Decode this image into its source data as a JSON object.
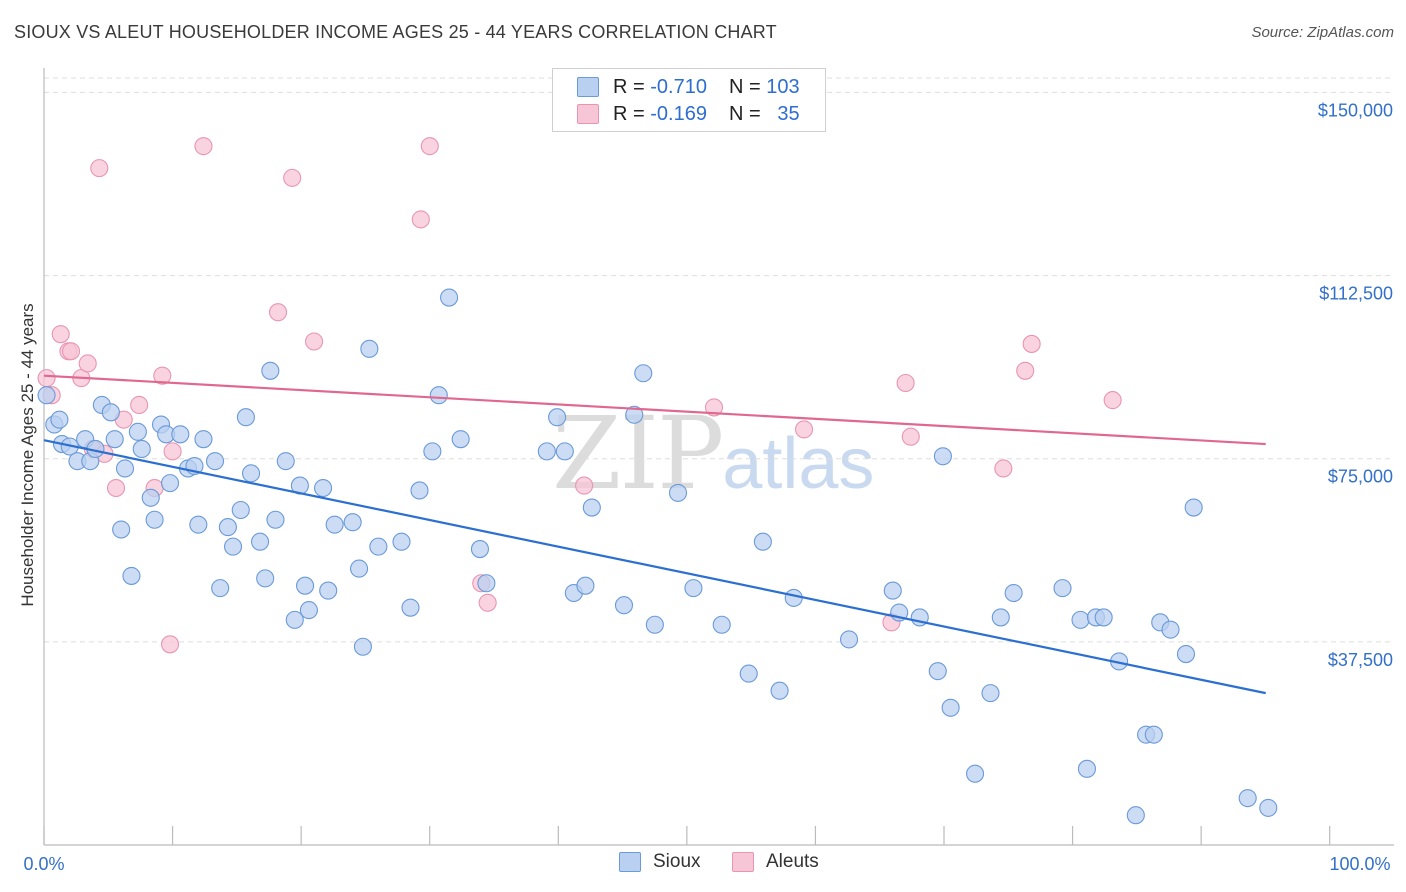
{
  "header": {
    "title": "SIOUX VS ALEUT HOUSEHOLDER INCOME AGES 25 - 44 YEARS CORRELATION CHART",
    "source": "Source: ZipAtlas.com"
  },
  "watermark": {
    "zip": "ZIP",
    "atlas": "atlas"
  },
  "legend": {
    "rows": [
      {
        "r_label": "R =",
        "r_value": "-0.710",
        "n_label": "N =",
        "n_value": "103"
      },
      {
        "r_label": "R =",
        "r_value": "-0.169",
        "n_label": "N =",
        "n_value": "35"
      }
    ]
  },
  "bottom_legend": [
    "Sioux",
    "Aleuts"
  ],
  "colors": {
    "sioux_fill": "#b9d0f0",
    "sioux_stroke": "#6a9ad8",
    "sioux_line": "#2b6fd1",
    "aleut_fill": "#f7c6d6",
    "aleut_stroke": "#e895b1",
    "aleut_line": "#e0688f",
    "tick_label": "#3370c8",
    "grid": "#dddddd"
  },
  "chart_data": {
    "type": "scatter",
    "title": "SIOUX VS ALEUT HOUSEHOLDER INCOME AGES 25 - 44 YEARS CORRELATION CHART",
    "xlabel": "",
    "ylabel": "Householder Income Ages 25 - 44 years",
    "xlim": [
      0,
      100
    ],
    "ylim": [
      0,
      155000
    ],
    "x_tick_labels": [
      "0.0%",
      "100.0%"
    ],
    "y_ticks": [
      37500,
      75000,
      112500,
      150000
    ],
    "y_tick_labels": [
      "$37,500",
      "$75,000",
      "$112,500",
      "$150,000"
    ],
    "grid": "horizontal dashed",
    "legend_position": "top-center",
    "series": [
      {
        "name": "Sioux",
        "r": -0.71,
        "n": 103,
        "trend": [
          [
            0,
            78800
          ],
          [
            95,
            27000
          ]
        ],
        "points": [
          [
            0.2,
            88000
          ],
          [
            0.8,
            82000
          ],
          [
            1.2,
            83000
          ],
          [
            1.4,
            78000
          ],
          [
            2.0,
            77500
          ],
          [
            2.6,
            74500
          ],
          [
            3.2,
            79000
          ],
          [
            3.6,
            74500
          ],
          [
            4.0,
            77000
          ],
          [
            4.5,
            86000
          ],
          [
            5.2,
            84500
          ],
          [
            5.5,
            79000
          ],
          [
            6.0,
            60500
          ],
          [
            6.3,
            73000
          ],
          [
            6.8,
            51000
          ],
          [
            7.3,
            80500
          ],
          [
            7.6,
            77000
          ],
          [
            8.3,
            67000
          ],
          [
            8.6,
            62500
          ],
          [
            9.1,
            82000
          ],
          [
            9.5,
            80000
          ],
          [
            9.8,
            70000
          ],
          [
            10.6,
            80000
          ],
          [
            11.2,
            73000
          ],
          [
            11.7,
            73500
          ],
          [
            12.0,
            61500
          ],
          [
            12.4,
            79000
          ],
          [
            13.3,
            74500
          ],
          [
            13.7,
            48500
          ],
          [
            14.3,
            61000
          ],
          [
            14.7,
            57000
          ],
          [
            15.3,
            64500
          ],
          [
            15.7,
            83500
          ],
          [
            16.1,
            72000
          ],
          [
            16.8,
            58000
          ],
          [
            17.2,
            50500
          ],
          [
            17.6,
            93000
          ],
          [
            18.0,
            62500
          ],
          [
            18.8,
            74500
          ],
          [
            19.5,
            42000
          ],
          [
            19.9,
            69500
          ],
          [
            20.3,
            49000
          ],
          [
            20.6,
            44000
          ],
          [
            21.7,
            69000
          ],
          [
            22.1,
            48000
          ],
          [
            22.6,
            61500
          ],
          [
            24.0,
            62000
          ],
          [
            24.5,
            52500
          ],
          [
            24.8,
            36500
          ],
          [
            25.3,
            97500
          ],
          [
            26.0,
            57000
          ],
          [
            27.8,
            58000
          ],
          [
            28.5,
            44500
          ],
          [
            29.2,
            68500
          ],
          [
            30.2,
            76500
          ],
          [
            30.7,
            88000
          ],
          [
            31.5,
            108000
          ],
          [
            32.4,
            79000
          ],
          [
            33.9,
            56500
          ],
          [
            34.4,
            49500
          ],
          [
            39.1,
            76500
          ],
          [
            39.9,
            83500
          ],
          [
            40.5,
            76500
          ],
          [
            41.2,
            47500
          ],
          [
            42.1,
            49000
          ],
          [
            42.6,
            65000
          ],
          [
            45.1,
            45000
          ],
          [
            45.9,
            84000
          ],
          [
            46.6,
            92500
          ],
          [
            47.5,
            41000
          ],
          [
            49.3,
            68000
          ],
          [
            50.5,
            48500
          ],
          [
            52.7,
            41000
          ],
          [
            54.8,
            31000
          ],
          [
            55.9,
            58000
          ],
          [
            57.2,
            27500
          ],
          [
            58.3,
            46500
          ],
          [
            62.6,
            38000
          ],
          [
            66.0,
            48000
          ],
          [
            66.5,
            43500
          ],
          [
            68.1,
            42500
          ],
          [
            69.5,
            31500
          ],
          [
            69.9,
            75500
          ],
          [
            70.5,
            24000
          ],
          [
            72.4,
            10500
          ],
          [
            73.6,
            27000
          ],
          [
            74.4,
            42500
          ],
          [
            75.4,
            47500
          ],
          [
            79.2,
            48500
          ],
          [
            80.6,
            42000
          ],
          [
            81.1,
            11500
          ],
          [
            81.8,
            42500
          ],
          [
            82.4,
            42500
          ],
          [
            83.6,
            33500
          ],
          [
            84.9,
            2000
          ],
          [
            85.7,
            18500
          ],
          [
            86.3,
            18500
          ],
          [
            86.8,
            41500
          ],
          [
            87.6,
            40000
          ],
          [
            88.8,
            35000
          ],
          [
            89.4,
            65000
          ],
          [
            93.6,
            5500
          ],
          [
            95.2,
            3500
          ]
        ]
      },
      {
        "name": "Aleuts",
        "r": -0.169,
        "n": 35,
        "trend": [
          [
            0,
            92000
          ],
          [
            95,
            78000
          ]
        ],
        "points": [
          [
            0.2,
            91500
          ],
          [
            0.6,
            88000
          ],
          [
            1.3,
            100500
          ],
          [
            1.9,
            97000
          ],
          [
            2.1,
            97000
          ],
          [
            2.9,
            91500
          ],
          [
            3.4,
            94500
          ],
          [
            3.8,
            77000
          ],
          [
            4.3,
            134500
          ],
          [
            4.7,
            76000
          ],
          [
            5.6,
            69000
          ],
          [
            6.2,
            83000
          ],
          [
            7.4,
            86000
          ],
          [
            8.6,
            69000
          ],
          [
            9.2,
            92000
          ],
          [
            9.8,
            37000
          ],
          [
            10.0,
            76500
          ],
          [
            12.4,
            139000
          ],
          [
            18.2,
            105000
          ],
          [
            19.3,
            132500
          ],
          [
            21.0,
            99000
          ],
          [
            29.3,
            124000
          ],
          [
            30.0,
            139000
          ],
          [
            34.0,
            49500
          ],
          [
            34.5,
            45500
          ],
          [
            42.0,
            69500
          ],
          [
            52.1,
            85500
          ],
          [
            59.1,
            81000
          ],
          [
            65.9,
            41500
          ],
          [
            67.0,
            90500
          ],
          [
            67.4,
            79500
          ],
          [
            74.6,
            73000
          ],
          [
            76.3,
            93000
          ],
          [
            76.8,
            98500
          ],
          [
            83.1,
            87000
          ]
        ]
      }
    ]
  }
}
